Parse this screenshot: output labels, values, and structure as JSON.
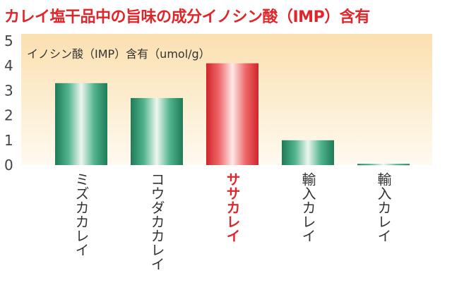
{
  "title": "カレイ塩干品中の旨味の成分イノシン酸（IMP）含有",
  "chart_data": {
    "type": "bar",
    "title": "カレイ塩干品中の旨味の成分イノシン酸（IMP）含有",
    "ylabel": "イノシン酸（IMP）含有（umol/g）",
    "xlabel": "",
    "ylim": [
      0,
      5
    ],
    "yticks": [
      0,
      1,
      2,
      3,
      4,
      5
    ],
    "categories": [
      "ミズカカレイ",
      "コウダカカレイ",
      "ササカレイ",
      "輸入カレイ",
      "輸入カレイ"
    ],
    "values": [
      3.3,
      2.7,
      4.1,
      1.0,
      0.05
    ],
    "highlight_index": 2,
    "colors": {
      "title": "#e0262a",
      "highlight": "#e0262a",
      "bar_green": "#2e9a72",
      "background_gradient_top": "#fbe2b4",
      "background_gradient_bottom": "#fefaf0"
    },
    "grid": false,
    "legend": "none"
  }
}
